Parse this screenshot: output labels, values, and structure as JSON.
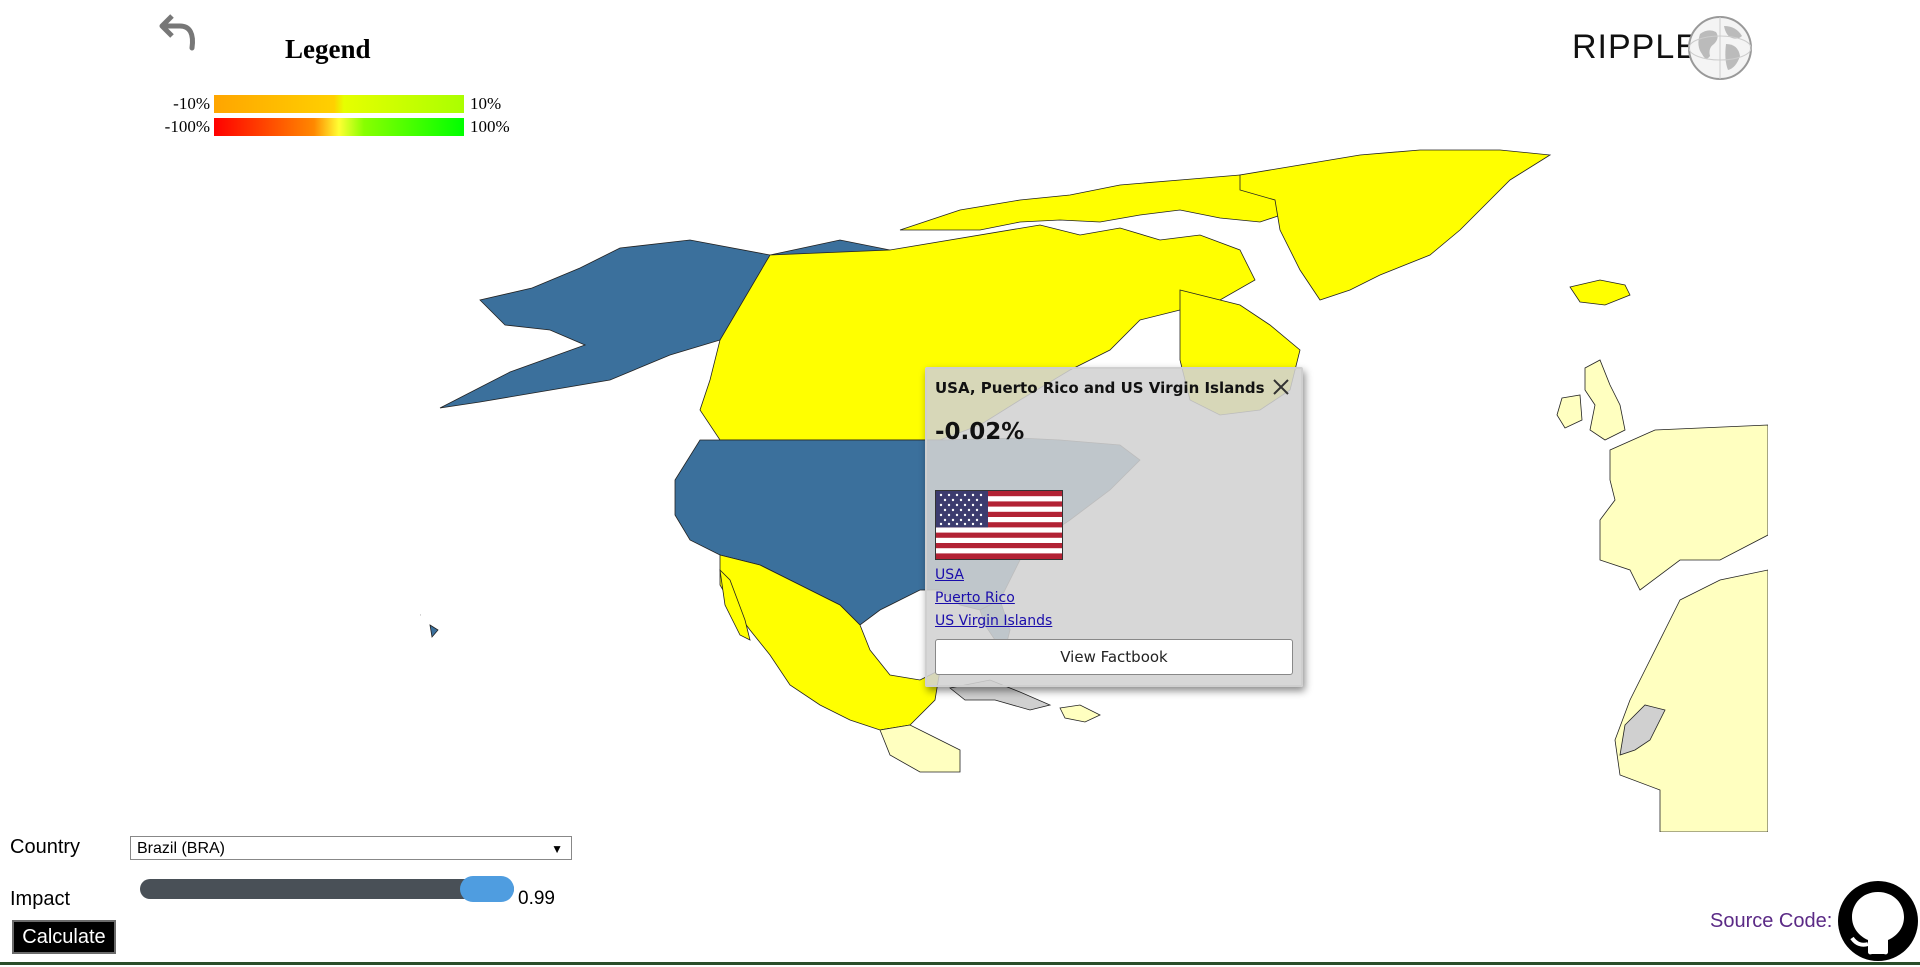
{
  "header": {
    "back_icon": "undo-arrow-icon",
    "brand": "RIPPLE",
    "brand_icon": "globe-icon"
  },
  "legend": {
    "title": "Legend",
    "small_min": "-10%",
    "small_max": "10%",
    "large_min": "-100%",
    "large_max": "100%"
  },
  "map": {
    "colors": {
      "selected": "#3b709c",
      "impacted": "#ffff00",
      "light": "#ffffc0",
      "no_data": "#d0d0d0",
      "border": "#222222"
    }
  },
  "popup": {
    "title": "USA, Puerto Rico and US Virgin Islands",
    "value": "-0.02%",
    "flag_icon": "us-flag-icon",
    "links": [
      "USA",
      "Puerto Rico",
      "US Virgin Islands"
    ],
    "button": "View Factbook"
  },
  "controls": {
    "country_label": "Country",
    "country_value": "Brazil (BRA)",
    "impact_label": "Impact",
    "impact_value": "0.99",
    "impact_fraction": 0.99,
    "calculate": "Calculate"
  },
  "footer": {
    "source_label": "Source Code:",
    "github_icon": "github-icon"
  }
}
